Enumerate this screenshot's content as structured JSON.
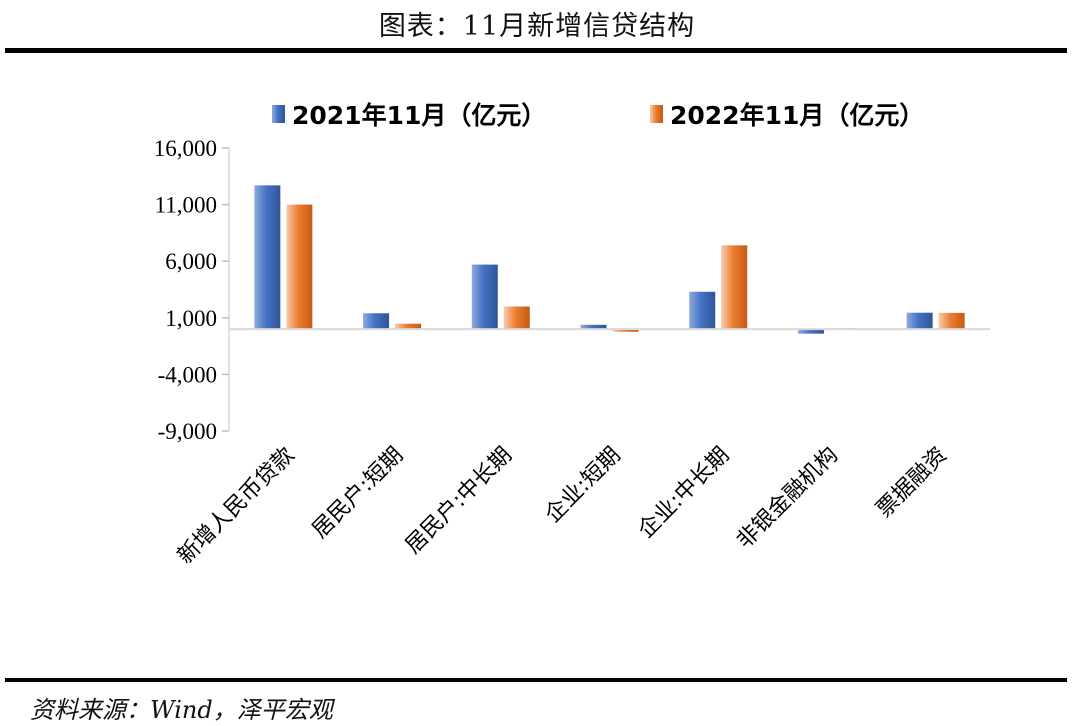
{
  "figure": {
    "title": "图表：11月新增信贷结构",
    "source": "资料来源：Wind，泽平宏观"
  },
  "chart_data": {
    "type": "bar",
    "categories": [
      "新增人民币贷款",
      "居民户:短期",
      "居民户:中长期",
      "企业:短期",
      "企业:中长期",
      "非银金融机构",
      "票据融资"
    ],
    "series": [
      {
        "name": "2021年11月（亿元）",
        "color": "#4472C4",
        "values": [
          12700,
          1400,
          5700,
          380,
          3300,
          -400,
          1450
        ]
      },
      {
        "name": "2022年11月（亿元）",
        "color": "#ED7D31",
        "values": [
          11000,
          480,
          2000,
          -240,
          7400,
          80,
          1430
        ]
      }
    ],
    "ylim": [
      -9000,
      16000
    ],
    "yticks": [
      16000,
      11000,
      6000,
      1000,
      -4000,
      -9000
    ],
    "ytick_labels": [
      "16,000",
      "11,000",
      "6,000",
      "1,000",
      "-4,000",
      "-9,000"
    ],
    "grid": false,
    "legend_position": "top"
  }
}
